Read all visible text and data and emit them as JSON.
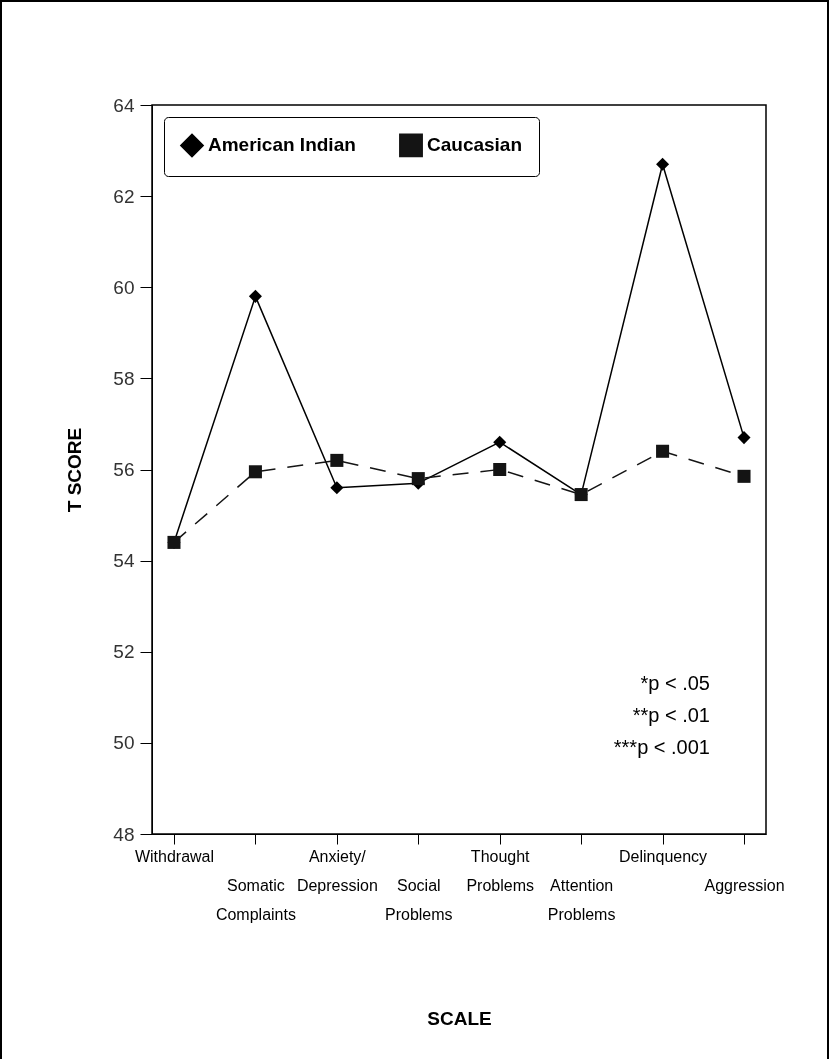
{
  "chart_data": {
    "type": "line",
    "xlabel": "SCALE",
    "ylabel": "T SCORE",
    "categories": [
      "Withdrawal",
      "Somatic Complaints",
      "Anxiety/ Depression",
      "Social Problems",
      "Thought Problems",
      "Attention Problems",
      "Delinquency",
      "Aggression"
    ],
    "series": [
      {
        "name": "American Indian",
        "color": "#000000",
        "marker": "diamond",
        "line_style": "solid",
        "values": [
          54.4,
          59.8,
          55.6,
          55.7,
          56.6,
          55.45,
          62.7,
          56.7
        ]
      },
      {
        "name": "Caucasian",
        "color": "#141414",
        "marker": "square",
        "line_style": "dashed",
        "values": [
          54.4,
          55.95,
          56.2,
          55.8,
          56.0,
          55.45,
          56.4,
          55.85
        ]
      }
    ],
    "ylim": [
      48,
      64
    ],
    "yticks": [
      48,
      50,
      52,
      54,
      56,
      58,
      60,
      62,
      64
    ],
    "grid": false,
    "legend": "top left",
    "annotations": [
      "*p < .05",
      "**p < .01",
      "***p < .001"
    ]
  }
}
